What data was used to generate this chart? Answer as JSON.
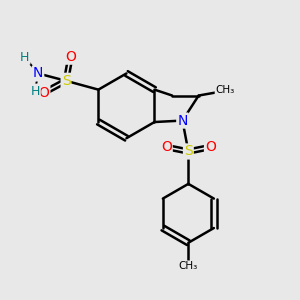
{
  "bg_color": "#e8e8e8",
  "atom_colors": {
    "C": "#000000",
    "N": "#0000ff",
    "O": "#ff0000",
    "S": "#cccc00",
    "H": "#008080"
  },
  "bond_color": "#000000",
  "bond_width": 1.8,
  "figsize": [
    3.0,
    3.0
  ],
  "dpi": 100
}
